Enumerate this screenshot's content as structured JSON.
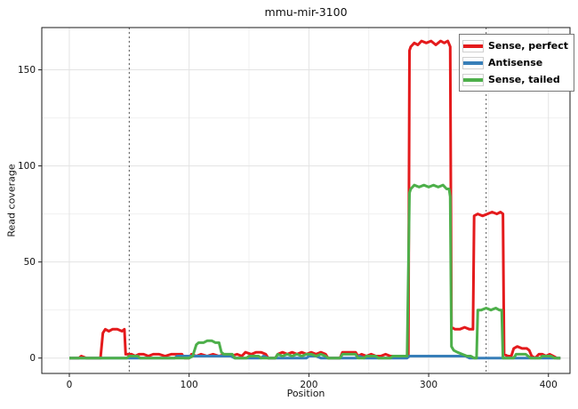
{
  "chart_data": {
    "type": "line",
    "title": "mmu-mir-3100",
    "xlabel": "Position",
    "ylabel": "Read coverage",
    "xlim": [
      -23,
      418
    ],
    "ylim": [
      -8,
      172
    ],
    "x_ticks": [
      0,
      100,
      200,
      300,
      400
    ],
    "y_ticks": [
      0,
      50,
      100,
      150
    ],
    "x_minor": [
      50,
      150,
      250,
      350
    ],
    "y_minor": [
      25,
      75,
      125
    ],
    "guides_x": [
      50,
      348
    ],
    "grid": true,
    "legend_position": "top-right",
    "panel_border_color": "#1a1a1a",
    "grid_major_color": "#e3e3e3",
    "grid_minor_color": "#f0f0f0",
    "guide_color": "#555555",
    "series": [
      {
        "name": "Sense, perfect",
        "color": "#e41a1c",
        "points": [
          [
            0,
            0
          ],
          [
            8,
            0
          ],
          [
            10,
            1
          ],
          [
            14,
            0
          ],
          [
            26,
            0
          ],
          [
            28,
            13
          ],
          [
            30,
            15
          ],
          [
            33,
            14
          ],
          [
            36,
            15
          ],
          [
            40,
            15
          ],
          [
            44,
            14
          ],
          [
            46,
            15
          ],
          [
            47,
            2
          ],
          [
            52,
            2
          ],
          [
            55,
            1
          ],
          [
            58,
            2
          ],
          [
            62,
            2
          ],
          [
            66,
            1
          ],
          [
            70,
            2
          ],
          [
            75,
            2
          ],
          [
            80,
            1
          ],
          [
            85,
            2
          ],
          [
            90,
            2
          ],
          [
            94,
            2
          ],
          [
            96,
            0
          ],
          [
            100,
            0
          ],
          [
            102,
            2
          ],
          [
            106,
            1
          ],
          [
            110,
            2
          ],
          [
            115,
            1
          ],
          [
            120,
            2
          ],
          [
            125,
            1
          ],
          [
            130,
            2
          ],
          [
            135,
            1
          ],
          [
            140,
            2
          ],
          [
            144,
            1
          ],
          [
            147,
            3
          ],
          [
            152,
            2
          ],
          [
            156,
            3
          ],
          [
            160,
            3
          ],
          [
            164,
            2
          ],
          [
            166,
            0
          ],
          [
            172,
            0
          ],
          [
            174,
            2
          ],
          [
            178,
            3
          ],
          [
            182,
            2
          ],
          [
            186,
            3
          ],
          [
            190,
            2
          ],
          [
            194,
            3
          ],
          [
            198,
            2
          ],
          [
            202,
            3
          ],
          [
            206,
            2
          ],
          [
            210,
            3
          ],
          [
            214,
            2
          ],
          [
            216,
            0
          ],
          [
            226,
            0
          ],
          [
            228,
            3
          ],
          [
            232,
            3
          ],
          [
            236,
            3
          ],
          [
            239,
            3
          ],
          [
            241,
            1
          ],
          [
            244,
            2
          ],
          [
            248,
            1
          ],
          [
            252,
            2
          ],
          [
            256,
            1
          ],
          [
            260,
            1
          ],
          [
            264,
            2
          ],
          [
            268,
            1
          ],
          [
            272,
            1
          ],
          [
            276,
            1
          ],
          [
            280,
            1
          ],
          [
            283,
            1
          ],
          [
            284,
            160
          ],
          [
            285,
            162
          ],
          [
            288,
            164
          ],
          [
            291,
            163
          ],
          [
            294,
            165
          ],
          [
            298,
            164
          ],
          [
            302,
            165
          ],
          [
            306,
            163
          ],
          [
            310,
            165
          ],
          [
            313,
            164
          ],
          [
            316,
            165
          ],
          [
            318,
            162
          ],
          [
            319,
            16
          ],
          [
            322,
            15
          ],
          [
            326,
            15
          ],
          [
            330,
            16
          ],
          [
            334,
            15
          ],
          [
            337,
            15
          ],
          [
            338,
            74
          ],
          [
            341,
            75
          ],
          [
            345,
            74
          ],
          [
            349,
            75
          ],
          [
            353,
            76
          ],
          [
            357,
            75
          ],
          [
            360,
            76
          ],
          [
            362,
            75
          ],
          [
            363,
            2
          ],
          [
            366,
            1
          ],
          [
            369,
            1
          ],
          [
            371,
            5
          ],
          [
            374,
            6
          ],
          [
            378,
            5
          ],
          [
            382,
            5
          ],
          [
            384,
            4
          ],
          [
            386,
            1
          ],
          [
            389,
            0
          ],
          [
            392,
            2
          ],
          [
            395,
            2
          ],
          [
            398,
            1
          ],
          [
            401,
            2
          ],
          [
            404,
            1
          ],
          [
            407,
            0
          ],
          [
            410,
            0
          ]
        ]
      },
      {
        "name": "Antisense",
        "color": "#377eb8",
        "points": [
          [
            0,
            0
          ],
          [
            88,
            0
          ],
          [
            90,
            1
          ],
          [
            95,
            1
          ],
          [
            100,
            1
          ],
          [
            105,
            1
          ],
          [
            110,
            1
          ],
          [
            115,
            1
          ],
          [
            120,
            1
          ],
          [
            126,
            1
          ],
          [
            130,
            1
          ],
          [
            135,
            1
          ],
          [
            138,
            0
          ],
          [
            160,
            0
          ],
          [
            162,
            1
          ],
          [
            166,
            0
          ],
          [
            198,
            0
          ],
          [
            200,
            1
          ],
          [
            206,
            1
          ],
          [
            210,
            0
          ],
          [
            240,
            0
          ],
          [
            242,
            1
          ],
          [
            246,
            0
          ],
          [
            282,
            0
          ],
          [
            284,
            1
          ],
          [
            290,
            1
          ],
          [
            296,
            1
          ],
          [
            302,
            1
          ],
          [
            308,
            1
          ],
          [
            314,
            1
          ],
          [
            320,
            1
          ],
          [
            326,
            1
          ],
          [
            331,
            1
          ],
          [
            334,
            0
          ],
          [
            410,
            0
          ]
        ]
      },
      {
        "name": "Sense, tailed",
        "color": "#4daf4a",
        "points": [
          [
            0,
            0
          ],
          [
            48,
            0
          ],
          [
            50,
            1
          ],
          [
            54,
            1
          ],
          [
            57,
            1
          ],
          [
            59,
            0
          ],
          [
            100,
            0
          ],
          [
            103,
            1
          ],
          [
            106,
            7
          ],
          [
            108,
            8
          ],
          [
            112,
            8
          ],
          [
            115,
            9
          ],
          [
            119,
            9
          ],
          [
            122,
            8
          ],
          [
            125,
            8
          ],
          [
            127,
            3
          ],
          [
            129,
            2
          ],
          [
            133,
            2
          ],
          [
            136,
            2
          ],
          [
            138,
            0
          ],
          [
            148,
            0
          ],
          [
            150,
            1
          ],
          [
            155,
            1
          ],
          [
            158,
            1
          ],
          [
            160,
            0
          ],
          [
            172,
            0
          ],
          [
            174,
            2
          ],
          [
            178,
            1
          ],
          [
            182,
            2
          ],
          [
            186,
            1
          ],
          [
            190,
            2
          ],
          [
            194,
            1
          ],
          [
            198,
            2
          ],
          [
            202,
            2
          ],
          [
            206,
            1
          ],
          [
            210,
            2
          ],
          [
            214,
            1
          ],
          [
            216,
            0
          ],
          [
            226,
            0
          ],
          [
            228,
            2
          ],
          [
            232,
            2
          ],
          [
            236,
            2
          ],
          [
            239,
            2
          ],
          [
            241,
            0
          ],
          [
            246,
            0
          ],
          [
            248,
            1
          ],
          [
            252,
            1
          ],
          [
            256,
            1
          ],
          [
            258,
            0
          ],
          [
            268,
            0
          ],
          [
            270,
            1
          ],
          [
            274,
            1
          ],
          [
            278,
            1
          ],
          [
            282,
            1
          ],
          [
            284,
            86
          ],
          [
            285,
            88
          ],
          [
            288,
            90
          ],
          [
            292,
            89
          ],
          [
            296,
            90
          ],
          [
            300,
            89
          ],
          [
            304,
            90
          ],
          [
            308,
            89
          ],
          [
            312,
            90
          ],
          [
            315,
            88
          ],
          [
            317,
            88
          ],
          [
            318,
            84
          ],
          [
            319,
            6
          ],
          [
            321,
            4
          ],
          [
            324,
            3
          ],
          [
            328,
            2
          ],
          [
            332,
            1
          ],
          [
            335,
            1
          ],
          [
            338,
            0
          ],
          [
            340,
            0
          ],
          [
            341,
            25
          ],
          [
            344,
            25
          ],
          [
            348,
            26
          ],
          [
            352,
            25
          ],
          [
            356,
            26
          ],
          [
            359,
            25
          ],
          [
            361,
            25
          ],
          [
            362,
            0
          ],
          [
            371,
            0
          ],
          [
            373,
            2
          ],
          [
            377,
            2
          ],
          [
            381,
            2
          ],
          [
            383,
            1
          ],
          [
            385,
            0
          ],
          [
            393,
            0
          ],
          [
            395,
            1
          ],
          [
            399,
            1
          ],
          [
            402,
            1
          ],
          [
            405,
            0
          ],
          [
            410,
            0
          ]
        ]
      }
    ]
  }
}
